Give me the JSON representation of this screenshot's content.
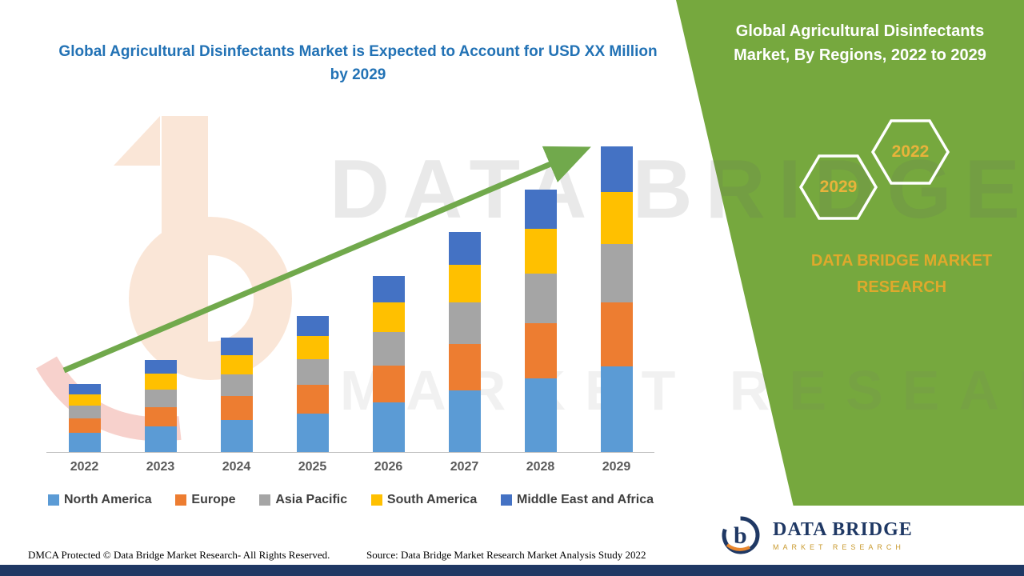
{
  "header": {
    "left_title": "Global Agricultural Disinfectants Market is Expected to Account for USD XX Million by 2029",
    "panel_title": "Global Agricultural Disinfectants Market, By Regions, 2022 to 2029"
  },
  "panel": {
    "hexagon_front_label": "2029",
    "hexagon_back_label": "2022",
    "brand_text": "DATA BRIDGE MARKET RESEARCH",
    "panel_color": "#76A83E",
    "gold_color": "#DFA92C"
  },
  "watermark": {
    "line1": "DATA BRIDGE",
    "line2": "MARKET RESEARCH"
  },
  "logo": {
    "title": "DATA BRIDGE",
    "subtitle": "MARKET RESEARCH"
  },
  "footer": {
    "dmca": "DMCA Protected © Data Bridge Market Research- All Rights Reserved.",
    "source": "Source: Data Bridge Market Research Market Analysis Study 2022"
  },
  "chart_data": {
    "type": "bar",
    "stacked": true,
    "title": "Global Agricultural Disinfectants Market, By Regions, 2022 to 2029",
    "xlabel": "",
    "ylabel": "",
    "note": "No y-axis or data labels shown; values are relative stacked heights estimated from the chart (market shown as USD XX Million).",
    "categories": [
      "2022",
      "2023",
      "2024",
      "2025",
      "2026",
      "2027",
      "2028",
      "2029"
    ],
    "series": [
      {
        "name": "North America",
        "color": "#5B9BD5",
        "values": [
          24,
          32,
          40,
          48,
          62,
          77,
          92,
          107
        ]
      },
      {
        "name": "Europe",
        "color": "#ED7D31",
        "values": [
          18,
          24,
          30,
          36,
          46,
          58,
          69,
          80
        ]
      },
      {
        "name": "Asia Pacific",
        "color": "#A5A5A5",
        "values": [
          16,
          22,
          27,
          32,
          42,
          52,
          62,
          73
        ]
      },
      {
        "name": "South America",
        "color": "#FFC000",
        "values": [
          14,
          20,
          24,
          29,
          37,
          47,
          56,
          65
        ]
      },
      {
        "name": "Middle East and Africa",
        "color": "#4472C4",
        "values": [
          13,
          17,
          22,
          25,
          33,
          41,
          49,
          57
        ]
      }
    ],
    "totals": [
      85,
      115,
      143,
      170,
      220,
      275,
      328,
      382
    ],
    "legend_position": "bottom",
    "grid": false,
    "trend_arrow": {
      "present": true,
      "color": "#71A94C",
      "direction": "up"
    }
  }
}
